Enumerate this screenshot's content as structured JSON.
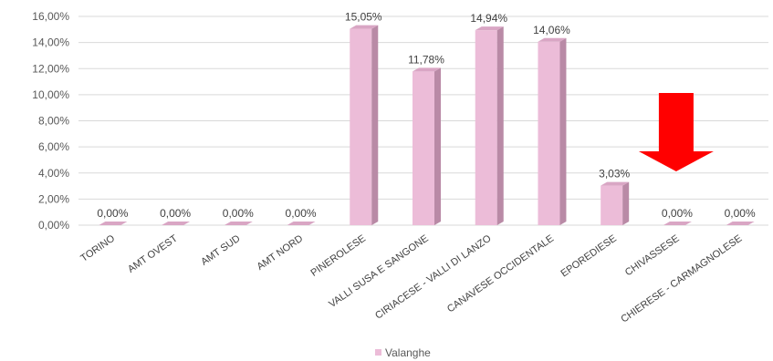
{
  "chart_data": {
    "type": "bar",
    "categories": [
      "TORINO",
      "AMT OVEST",
      "AMT SUD",
      "AMT NORD",
      "PINEROLESE",
      "VALLI SUSA E SANGONE",
      "CIRIACESE - VALLI DI LANZO",
      "CANAVESE OCCIDENTALE",
      "EPOREDIESE",
      "CHIVASSESE",
      "CHIERESE - CARMAGNOLESE"
    ],
    "series": [
      {
        "name": "Valanghe",
        "values": [
          0.0,
          0.0,
          0.0,
          0.0,
          15.05,
          11.78,
          14.94,
          14.06,
          3.03,
          0.0,
          0.0
        ]
      }
    ],
    "data_labels": [
      "0,00%",
      "0,00%",
      "0,00%",
      "0,00%",
      "15,05%",
      "11,78%",
      "14,94%",
      "14,06%",
      "3,03%",
      "0,00%",
      "0,00%"
    ],
    "y_ticks": [
      0,
      2,
      4,
      6,
      8,
      10,
      12,
      14,
      16
    ],
    "y_tick_labels": [
      "0,00%",
      "2,00%",
      "4,00%",
      "6,00%",
      "8,00%",
      "10,00%",
      "12,00%",
      "14,00%",
      "16,00%"
    ],
    "ylim": [
      0,
      16
    ],
    "title": "",
    "xlabel": "",
    "ylabel": "",
    "grid": true,
    "legend": {
      "position": "bottom",
      "entries": [
        "Valanghe"
      ]
    },
    "annotation": {
      "type": "arrow",
      "direction": "down",
      "target_category": "CHIVASSESE"
    },
    "colors": {
      "bar_front": "#ecbcd8",
      "bar_side": "#b98aa6",
      "bar_top": "#d9a6c4",
      "grid": "#d9d9d9",
      "arrow": "#ff0000"
    }
  }
}
